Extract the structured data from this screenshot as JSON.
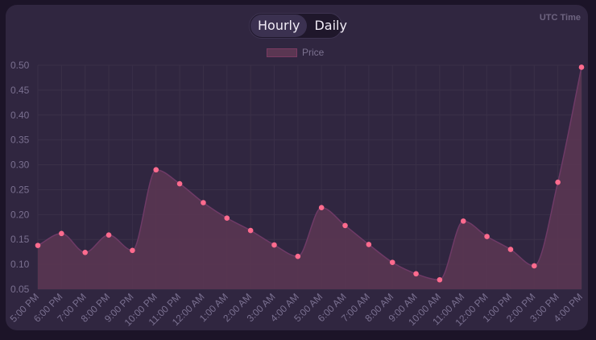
{
  "header": {
    "timezone_label": "UTC Time",
    "toggle": {
      "options": [
        "Hourly",
        "Daily"
      ],
      "selected": "Hourly"
    }
  },
  "colors": {
    "page_bg": "#1c1428",
    "card_bg": "#302640",
    "line": "#6e3a66",
    "area_fill": "#5a3652",
    "point": "#ff6b8e",
    "grid": "#3a3048"
  },
  "chart_data": {
    "type": "area",
    "title": "",
    "xlabel": "",
    "ylabel": "",
    "legend": {
      "labels": [
        "Price"
      ],
      "placement": "top-center"
    },
    "grid": true,
    "ylim": [
      0.05,
      0.5
    ],
    "yticks": [
      "0.50",
      "0.45",
      "0.40",
      "0.35",
      "0.30",
      "0.25",
      "0.20",
      "0.15",
      "0.10",
      "0.05"
    ],
    "x": [
      "5:00 PM",
      "6:00 PM",
      "7:00 PM",
      "8:00 PM",
      "9:00 PM",
      "10:00 PM",
      "11:00 PM",
      "12:00 AM",
      "1:00 AM",
      "2:00 AM",
      "3:00 AM",
      "4:00 AM",
      "5:00 AM",
      "6:00 AM",
      "7:00 AM",
      "8:00 AM",
      "9:00 AM",
      "10:00 AM",
      "11:00 AM",
      "12:00 PM",
      "1:00 PM",
      "2:00 PM",
      "3:00 PM",
      "4:00 PM"
    ],
    "series": [
      {
        "name": "Price",
        "values": [
          0.138,
          0.162,
          0.124,
          0.159,
          0.128,
          0.29,
          0.262,
          0.224,
          0.193,
          0.168,
          0.139,
          0.116,
          0.214,
          0.178,
          0.14,
          0.104,
          0.081,
          0.069,
          0.187,
          0.156,
          0.13,
          0.097,
          0.265,
          0.496
        ]
      }
    ]
  }
}
